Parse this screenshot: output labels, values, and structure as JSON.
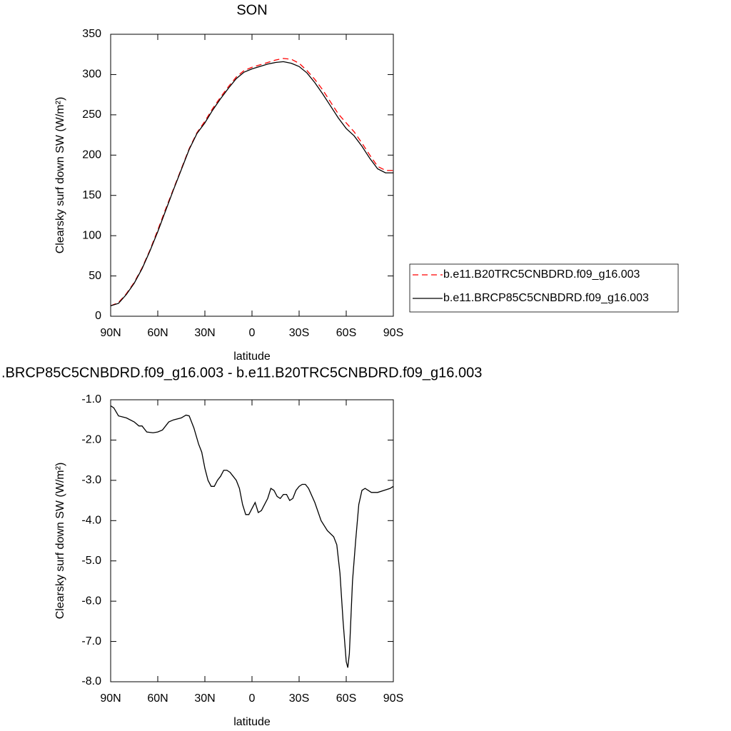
{
  "chart_data": [
    {
      "type": "line",
      "title": "SON",
      "xlabel": "latitude",
      "ylabel": "Clearsky surf down SW (W/m²)",
      "x": [
        90,
        85,
        80,
        75,
        70,
        65,
        60,
        55,
        50,
        45,
        40,
        35,
        30,
        25,
        20,
        15,
        10,
        5,
        0,
        -5,
        -10,
        -15,
        -20,
        -25,
        -30,
        -35,
        -40,
        -45,
        -50,
        -55,
        -60,
        -65,
        -70,
        -75,
        -80,
        -85,
        -90
      ],
      "series": [
        {
          "name": "b.e11.B20TRC5CNBDRD.f09_g16.003",
          "color": "#ff0000",
          "dash": true,
          "values": [
            13,
            17,
            28,
            42,
            60,
            82,
            107,
            133,
            158,
            183,
            208,
            228,
            242,
            258,
            272,
            285,
            297,
            305,
            309,
            312,
            315,
            318,
            320,
            319,
            314,
            305,
            294,
            281,
            266,
            251,
            240,
            229,
            215,
            200,
            186,
            181,
            181
          ]
        },
        {
          "name": "b.e11.BRCP85C5CNBDRD.f09_g16.003",
          "color": "#000000",
          "dash": false,
          "values": [
            13,
            16,
            27,
            41,
            59,
            81,
            105,
            131,
            157,
            182,
            207,
            227,
            240,
            256,
            270,
            283,
            295,
            303,
            307,
            310,
            313,
            315,
            316,
            314,
            310,
            302,
            290,
            276,
            261,
            246,
            233,
            224,
            211,
            196,
            183,
            178,
            178
          ]
        }
      ],
      "xlim": [
        90,
        -90
      ],
      "xticks": [
        {
          "value": 90,
          "label": "90N"
        },
        {
          "value": 60,
          "label": "60N"
        },
        {
          "value": 30,
          "label": "30N"
        },
        0,
        {
          "value": -30,
          "label": "30S"
        },
        {
          "value": -60,
          "label": "60S"
        },
        {
          "value": -90,
          "label": "90S"
        }
      ],
      "ylim": [
        0,
        350
      ],
      "yticks": [
        0,
        50,
        100,
        150,
        200,
        250,
        300,
        350
      ],
      "legend": "right"
    },
    {
      "type": "line",
      "title": ".BRCP85C5CNBDRD.f09_g16.003 - b.e11.B20TRC5CNBDRD.f09_g16.003",
      "xlabel": "latitude",
      "ylabel": "Clearsky surf down SW (W/m²)",
      "x": [
        90,
        88,
        85,
        80,
        75,
        72,
        70,
        67,
        63,
        60,
        57,
        53,
        50,
        45,
        42,
        40,
        37,
        34,
        32,
        30,
        28,
        26,
        24,
        22,
        20,
        18,
        16,
        14,
        12,
        10,
        8,
        6,
        4,
        2,
        0,
        -2,
        -4,
        -6,
        -8,
        -10,
        -12,
        -14,
        -16,
        -18,
        -20,
        -22,
        -24,
        -26,
        -28,
        -30,
        -32,
        -34,
        -36,
        -40,
        -44,
        -48,
        -52,
        -54,
        -56,
        -58,
        -60,
        -61,
        -62,
        -64,
        -66,
        -68,
        -70,
        -72,
        -74,
        -76,
        -80,
        -84,
        -88,
        -90
      ],
      "values": [
        -1.15,
        -1.2,
        -1.4,
        -1.45,
        -1.55,
        -1.65,
        -1.65,
        -1.8,
        -1.82,
        -1.8,
        -1.75,
        -1.55,
        -1.5,
        -1.45,
        -1.38,
        -1.4,
        -1.7,
        -2.1,
        -2.3,
        -2.7,
        -3.0,
        -3.15,
        -3.15,
        -3.0,
        -2.9,
        -2.75,
        -2.75,
        -2.8,
        -2.9,
        -3.0,
        -3.2,
        -3.6,
        -3.85,
        -3.85,
        -3.7,
        -3.55,
        -3.8,
        -3.75,
        -3.6,
        -3.45,
        -3.2,
        -3.25,
        -3.4,
        -3.45,
        -3.35,
        -3.35,
        -3.5,
        -3.45,
        -3.25,
        -3.15,
        -3.1,
        -3.1,
        -3.2,
        -3.55,
        -4.0,
        -4.25,
        -4.4,
        -4.6,
        -5.3,
        -6.5,
        -7.5,
        -7.65,
        -7.3,
        -5.5,
        -4.5,
        -3.6,
        -3.25,
        -3.2,
        -3.25,
        -3.3,
        -3.3,
        -3.25,
        -3.2,
        -3.15
      ],
      "color": "#000000",
      "xlim": [
        90,
        -90
      ],
      "xticks": [
        {
          "value": 90,
          "label": "90N"
        },
        {
          "value": 60,
          "label": "60N"
        },
        {
          "value": 30,
          "label": "30N"
        },
        0,
        {
          "value": -30,
          "label": "30S"
        },
        {
          "value": -60,
          "label": "60S"
        },
        {
          "value": -90,
          "label": "90S"
        }
      ],
      "ylim": [
        -8,
        -1
      ],
      "yticks": [
        {
          "value": -1,
          "label": "-1.0"
        },
        {
          "value": -2,
          "label": "-2.0"
        },
        {
          "value": -3,
          "label": "-3.0"
        },
        {
          "value": -4,
          "label": "-4.0"
        },
        {
          "value": -5,
          "label": "-5.0"
        },
        {
          "value": -6,
          "label": "-6.0"
        },
        {
          "value": -7,
          "label": "-7.0"
        },
        {
          "value": -8,
          "label": "-8.0"
        }
      ]
    }
  ]
}
